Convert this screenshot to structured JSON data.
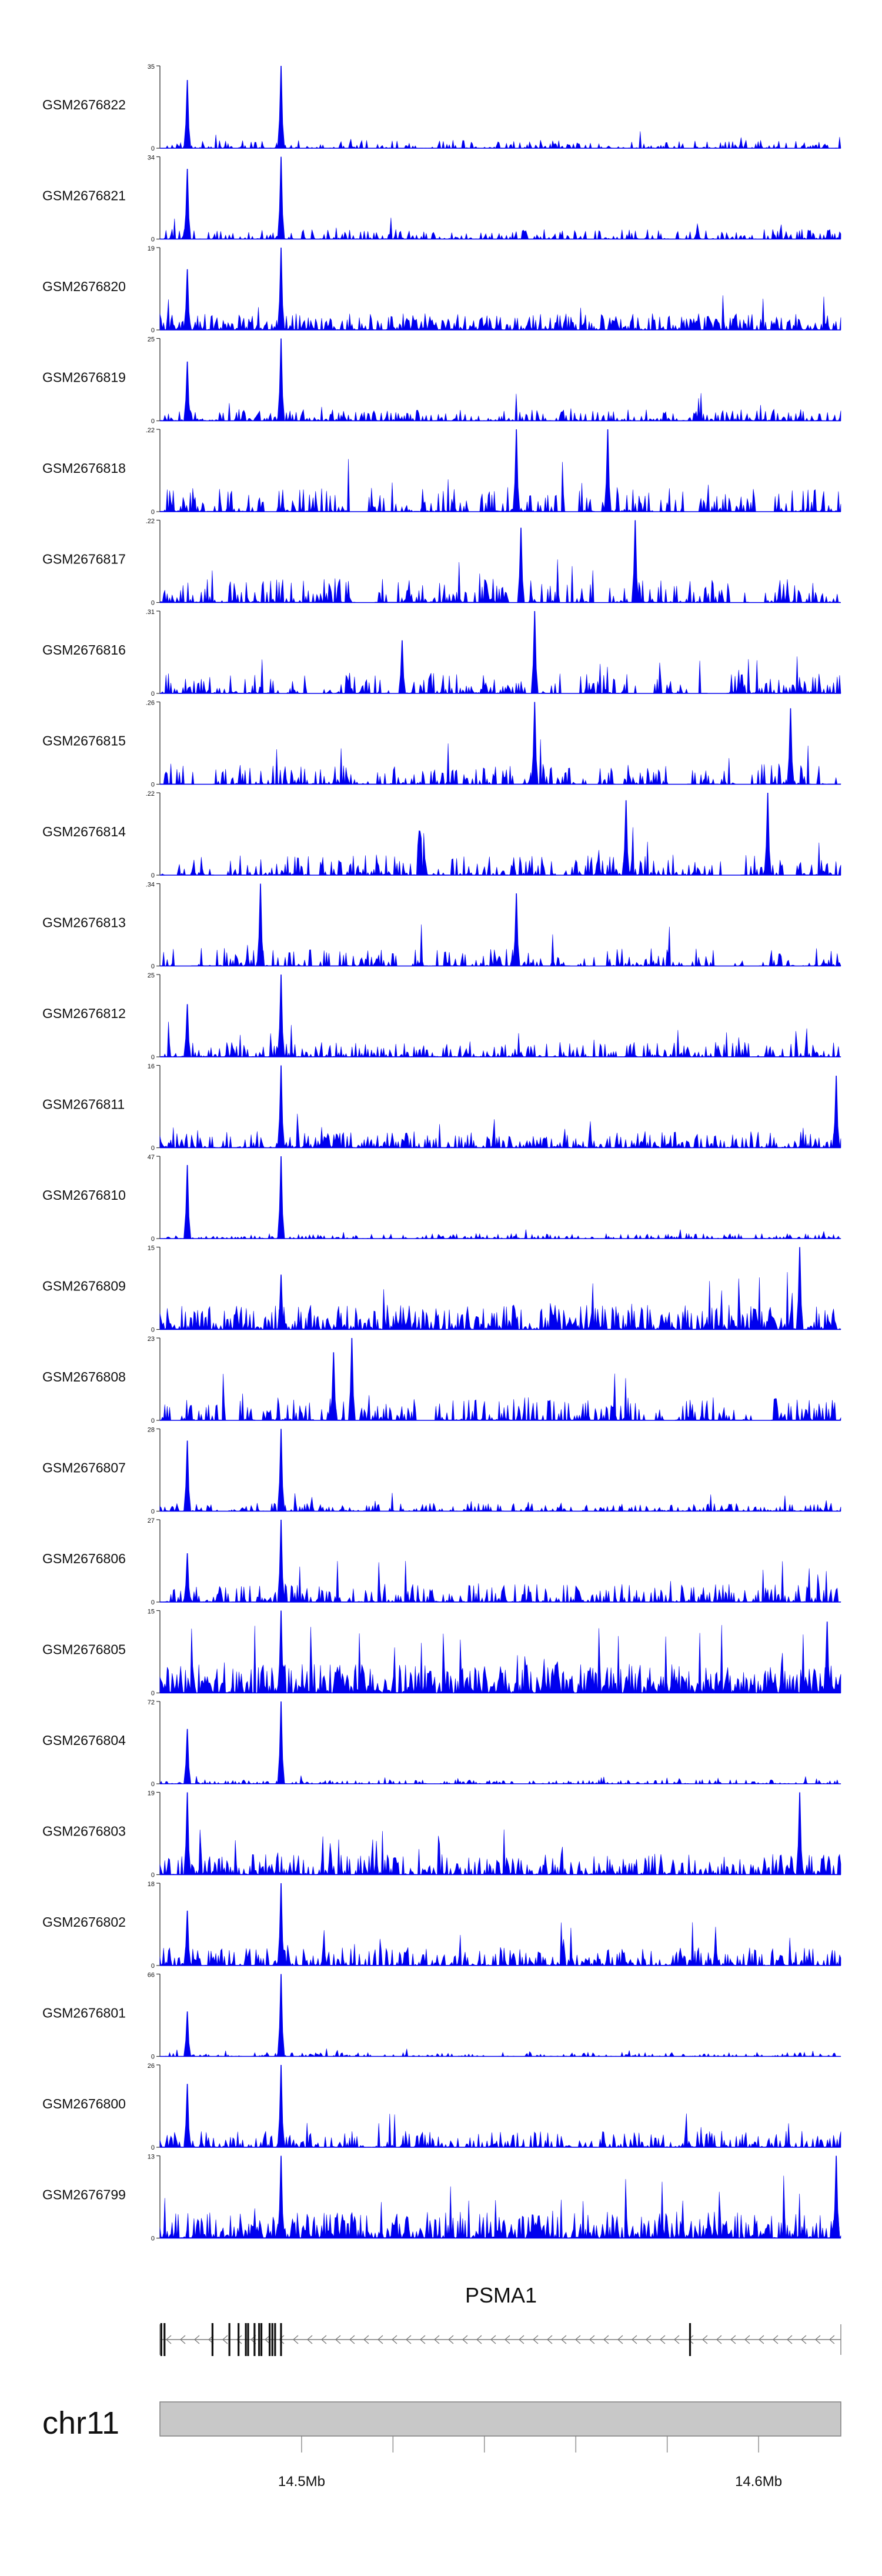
{
  "chart_data": {
    "type": "area",
    "title": "",
    "chromosome": "chr11",
    "x_unit": "Mb",
    "xlim": [
      14.469,
      14.618
    ],
    "x_ticks": [
      {
        "value": 14.5,
        "label": "14.5Mb"
      },
      {
        "value": 14.6,
        "label": "14.6Mb"
      }
    ],
    "track_color": "#0000ee",
    "gene": {
      "name": "PSMA1",
      "start": 14.469,
      "end": 14.618,
      "strand": "-",
      "exons": [
        14.4693,
        14.47,
        14.4805,
        14.4842,
        14.4862,
        14.4878,
        14.4883,
        14.4897,
        14.4907,
        14.4912,
        14.493,
        14.4936,
        14.4942,
        14.4955,
        14.585
      ]
    },
    "series": [
      {
        "name": "GSM2676822",
        "ymax": 35,
        "ytick_labels": [
          "35",
          "0"
        ],
        "peaks": [
          {
            "x": 14.475,
            "y": 29
          },
          {
            "x": 14.4955,
            "y": 35
          }
        ],
        "baseline": 0.1,
        "density": 0.5,
        "gaps": false,
        "seed": 1
      },
      {
        "name": "GSM2676821",
        "ymax": 34,
        "ytick_labels": [
          "34",
          "0"
        ],
        "peaks": [
          {
            "x": 14.475,
            "y": 29
          },
          {
            "x": 14.4955,
            "y": 34
          }
        ],
        "baseline": 0.12,
        "density": 0.55,
        "gaps": false,
        "seed": 2
      },
      {
        "name": "GSM2676820",
        "ymax": 19,
        "ytick_labels": [
          "19",
          "0"
        ],
        "peaks": [
          {
            "x": 14.475,
            "y": 14
          },
          {
            "x": 14.4955,
            "y": 19
          }
        ],
        "baseline": 0.2,
        "density": 0.8,
        "gaps": false,
        "seed": 3
      },
      {
        "name": "GSM2676819",
        "ymax": 25,
        "ytick_labels": [
          "25",
          "0"
        ],
        "peaks": [
          {
            "x": 14.475,
            "y": 18
          },
          {
            "x": 14.4955,
            "y": 25
          }
        ],
        "baseline": 0.14,
        "density": 0.6,
        "gaps": false,
        "seed": 4
      },
      {
        "name": "GSM2676818",
        "ymax": 0.22,
        "ytick_labels": [
          ".22",
          "0"
        ],
        "peaks": [
          {
            "x": 14.547,
            "y": 0.22
          },
          {
            "x": 14.567,
            "y": 0.22
          }
        ],
        "baseline": 0.3,
        "density": 0.55,
        "gaps": true,
        "seed": 5
      },
      {
        "name": "GSM2676817",
        "ymax": 0.22,
        "ytick_labels": [
          ".22",
          "0"
        ],
        "peaks": [
          {
            "x": 14.548,
            "y": 0.2
          },
          {
            "x": 14.573,
            "y": 0.22
          }
        ],
        "baseline": 0.3,
        "density": 0.55,
        "gaps": true,
        "seed": 6
      },
      {
        "name": "GSM2676816",
        "ymax": 0.31,
        "ytick_labels": [
          ".31",
          "0"
        ],
        "peaks": [
          {
            "x": 14.551,
            "y": 0.31
          },
          {
            "x": 14.522,
            "y": 0.2
          }
        ],
        "baseline": 0.25,
        "density": 0.55,
        "gaps": true,
        "seed": 7
      },
      {
        "name": "GSM2676815",
        "ymax": 0.26,
        "ytick_labels": [
          ".26",
          "0"
        ],
        "peaks": [
          {
            "x": 14.551,
            "y": 0.26
          },
          {
            "x": 14.607,
            "y": 0.24
          }
        ],
        "baseline": 0.25,
        "density": 0.5,
        "gaps": true,
        "seed": 8
      },
      {
        "name": "GSM2676814",
        "ymax": 0.22,
        "ytick_labels": [
          ".22",
          "0"
        ],
        "peaks": [
          {
            "x": 14.571,
            "y": 0.2
          },
          {
            "x": 14.602,
            "y": 0.22
          }
        ],
        "baseline": 0.25,
        "density": 0.6,
        "gaps": true,
        "seed": 9
      },
      {
        "name": "GSM2676813",
        "ymax": 0.34,
        "ytick_labels": [
          ".34",
          "0"
        ],
        "peaks": [
          {
            "x": 14.491,
            "y": 0.34
          },
          {
            "x": 14.547,
            "y": 0.3
          }
        ],
        "baseline": 0.22,
        "density": 0.5,
        "gaps": true,
        "seed": 10
      },
      {
        "name": "GSM2676812",
        "ymax": 25,
        "ytick_labels": [
          "25",
          "0"
        ],
        "peaks": [
          {
            "x": 14.4955,
            "y": 25
          },
          {
            "x": 14.475,
            "y": 16
          }
        ],
        "baseline": 0.18,
        "density": 0.55,
        "gaps": false,
        "seed": 11
      },
      {
        "name": "GSM2676811",
        "ymax": 16,
        "ytick_labels": [
          "16",
          "0"
        ],
        "peaks": [
          {
            "x": 14.4955,
            "y": 16
          },
          {
            "x": 14.617,
            "y": 14
          }
        ],
        "baseline": 0.2,
        "density": 0.65,
        "gaps": false,
        "seed": 12
      },
      {
        "name": "GSM2676810",
        "ymax": 47,
        "ytick_labels": [
          "47",
          "0"
        ],
        "peaks": [
          {
            "x": 14.475,
            "y": 42
          },
          {
            "x": 14.4955,
            "y": 47
          }
        ],
        "baseline": 0.06,
        "density": 0.5,
        "gaps": false,
        "seed": 13
      },
      {
        "name": "GSM2676809",
        "ymax": 15,
        "ytick_labels": [
          "15",
          "0"
        ],
        "peaks": [
          {
            "x": 14.4955,
            "y": 10
          },
          {
            "x": 14.609,
            "y": 15
          }
        ],
        "baseline": 0.3,
        "density": 0.8,
        "gaps": false,
        "seed": 14
      },
      {
        "name": "GSM2676808",
        "ymax": 23,
        "ytick_labels": [
          "23",
          "0"
        ],
        "peaks": [
          {
            "x": 14.511,
            "y": 23
          },
          {
            "x": 14.507,
            "y": 19
          }
        ],
        "baseline": 0.28,
        "density": 0.55,
        "gaps": true,
        "seed": 15
      },
      {
        "name": "GSM2676807",
        "ymax": 28,
        "ytick_labels": [
          "28",
          "0"
        ],
        "peaks": [
          {
            "x": 14.475,
            "y": 24
          },
          {
            "x": 14.4955,
            "y": 28
          }
        ],
        "baseline": 0.1,
        "density": 0.55,
        "gaps": false,
        "seed": 16
      },
      {
        "name": "GSM2676806",
        "ymax": 27,
        "ytick_labels": [
          "27",
          "0"
        ],
        "peaks": [
          {
            "x": 14.4955,
            "y": 27
          },
          {
            "x": 14.475,
            "y": 16
          }
        ],
        "baseline": 0.22,
        "density": 0.6,
        "gaps": false,
        "seed": 17
      },
      {
        "name": "GSM2676805",
        "ymax": 15,
        "ytick_labels": [
          "15",
          "0"
        ],
        "peaks": [
          {
            "x": 14.4955,
            "y": 15
          },
          {
            "x": 14.615,
            "y": 13
          }
        ],
        "baseline": 0.35,
        "density": 0.95,
        "gaps": false,
        "seed": 18
      },
      {
        "name": "GSM2676804",
        "ymax": 72,
        "ytick_labels": [
          "72",
          "0"
        ],
        "peaks": [
          {
            "x": 14.475,
            "y": 48
          },
          {
            "x": 14.4955,
            "y": 72
          }
        ],
        "baseline": 0.05,
        "density": 0.45,
        "gaps": false,
        "seed": 19
      },
      {
        "name": "GSM2676803",
        "ymax": 19,
        "ytick_labels": [
          "19",
          "0"
        ],
        "peaks": [
          {
            "x": 14.475,
            "y": 19
          },
          {
            "x": 14.609,
            "y": 19
          }
        ],
        "baseline": 0.25,
        "density": 0.7,
        "gaps": false,
        "seed": 20
      },
      {
        "name": "GSM2676802",
        "ymax": 18,
        "ytick_labels": [
          "18",
          "0"
        ],
        "peaks": [
          {
            "x": 14.4955,
            "y": 18
          },
          {
            "x": 14.475,
            "y": 12
          }
        ],
        "baseline": 0.22,
        "density": 0.65,
        "gaps": false,
        "seed": 21
      },
      {
        "name": "GSM2676801",
        "ymax": 66,
        "ytick_labels": [
          "66",
          "0"
        ],
        "peaks": [
          {
            "x": 14.475,
            "y": 36
          },
          {
            "x": 14.4955,
            "y": 66
          }
        ],
        "baseline": 0.05,
        "density": 0.45,
        "gaps": false,
        "seed": 22
      },
      {
        "name": "GSM2676800",
        "ymax": 26,
        "ytick_labels": [
          "26",
          "0"
        ],
        "peaks": [
          {
            "x": 14.475,
            "y": 20
          },
          {
            "x": 14.4955,
            "y": 26
          }
        ],
        "baseline": 0.2,
        "density": 0.6,
        "gaps": false,
        "seed": 23
      },
      {
        "name": "GSM2676799",
        "ymax": 13,
        "ytick_labels": [
          "13",
          "0"
        ],
        "peaks": [
          {
            "x": 14.4955,
            "y": 13
          },
          {
            "x": 14.617,
            "y": 13
          }
        ],
        "baseline": 0.32,
        "density": 0.85,
        "gaps": false,
        "seed": 24
      }
    ]
  }
}
